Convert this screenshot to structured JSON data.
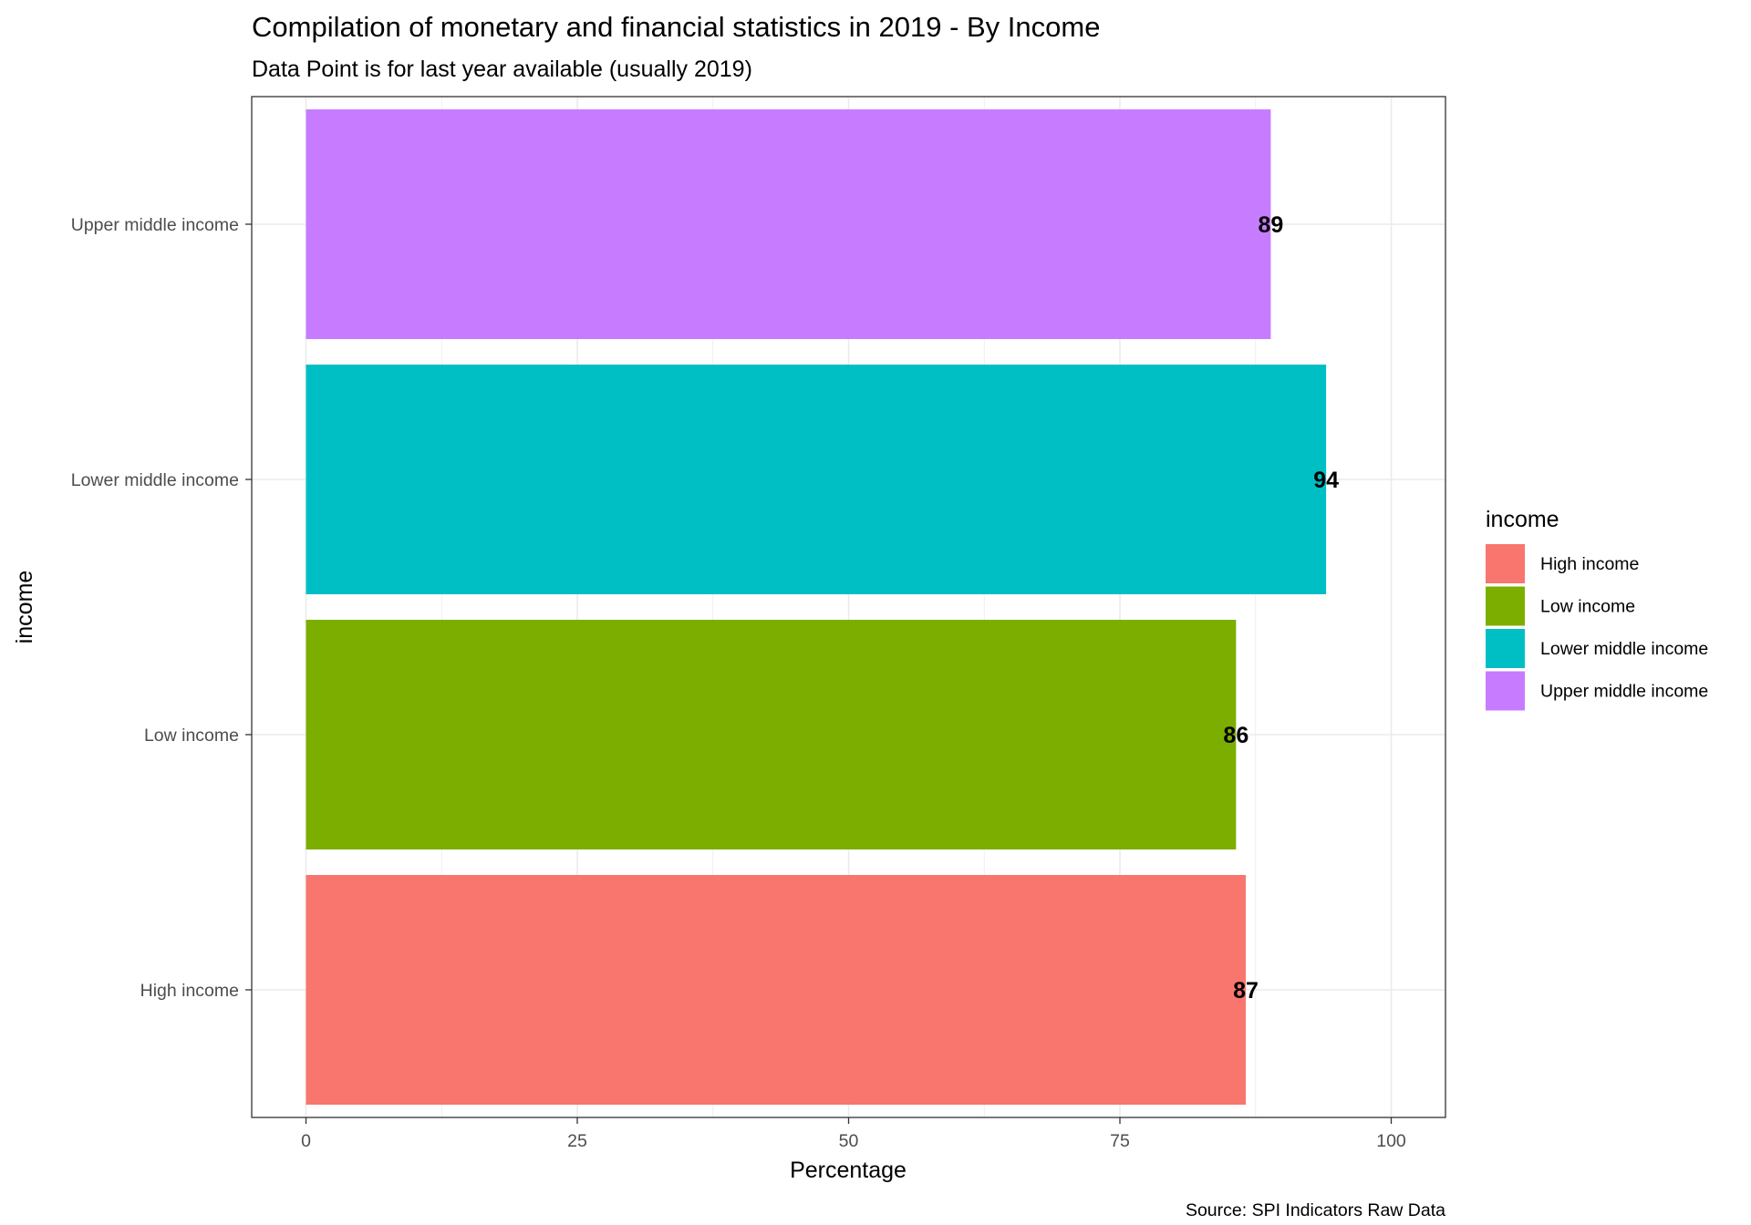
{
  "chart_data": {
    "type": "bar",
    "orientation": "horizontal",
    "title": "Compilation of monetary and financial statistics in 2019 - By Income",
    "subtitle": "Data Point is for last year available (usually 2019)",
    "xlabel": "Percentage",
    "ylabel": "income",
    "caption": "Source: SPI Indicators Raw Data",
    "categories": [
      "High income",
      "Low income",
      "Lower middle income",
      "Upper middle income"
    ],
    "values": [
      86.6,
      85.7,
      94.0,
      88.9
    ],
    "data_labels": [
      "87",
      "86",
      "94",
      "89"
    ],
    "colors": [
      "#F8766D",
      "#7CAE00",
      "#00BFC4",
      "#C77CFF"
    ],
    "xlim": [
      -5,
      105
    ],
    "xticks": [
      0,
      25,
      50,
      75,
      100
    ],
    "xtick_labels": [
      "0",
      "25",
      "50",
      "75",
      "100"
    ],
    "grid": true,
    "legend": {
      "title": "income",
      "placement": "right",
      "entries": [
        "High income",
        "Low income",
        "Lower middle income",
        "Upper middle income"
      ]
    }
  }
}
